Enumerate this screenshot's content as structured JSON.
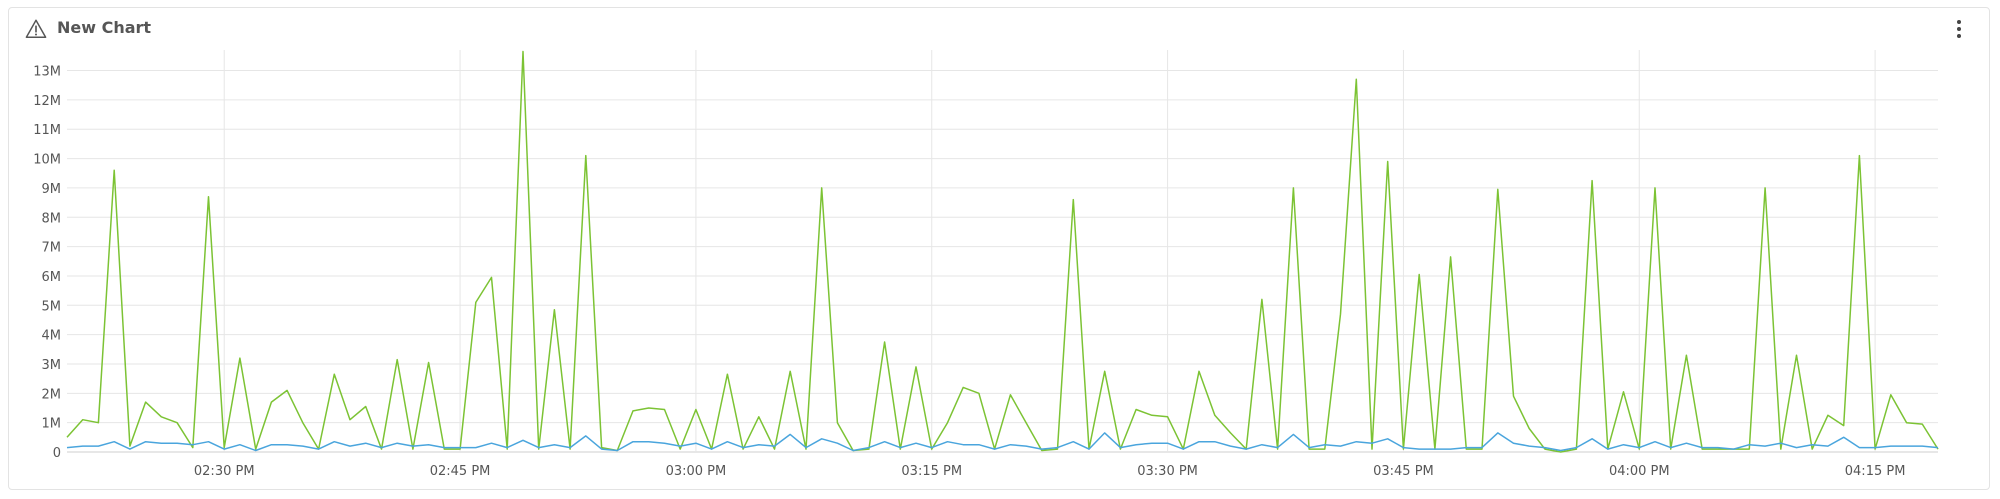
{
  "header": {
    "title": "New Chart",
    "icon": "warning-icon",
    "menu_icon": "kebab-menu-icon"
  },
  "colors": {
    "series_green": "#7cc334",
    "series_blue": "#4aa5dd",
    "grid": "#e6e6e6",
    "axis_text": "#565656"
  },
  "chart_data": {
    "type": "line",
    "title": "New Chart",
    "xlabel": "",
    "ylabel": "",
    "x_start": "02:20 PM",
    "x_interval_minutes": 1,
    "x_ticks": [
      "02:30 PM",
      "02:45 PM",
      "03:00 PM",
      "03:15 PM",
      "03:30 PM",
      "03:45 PM",
      "04:00 PM",
      "04:15 PM"
    ],
    "y_ticks": [
      "0",
      "1M",
      "2M",
      "3M",
      "4M",
      "5M",
      "6M",
      "7M",
      "8M",
      "9M",
      "10M",
      "11M",
      "12M",
      "13M"
    ],
    "ylim": [
      0,
      13700000
    ],
    "grid": true,
    "legend": "none",
    "series": [
      {
        "color": "#7cc334",
        "values": [
          500000,
          1100000,
          1000000,
          9600000,
          200000,
          1700000,
          1200000,
          1000000,
          150000,
          8700000,
          150000,
          3200000,
          100000,
          1700000,
          2100000,
          1000000,
          100000,
          2650000,
          1100000,
          1550000,
          100000,
          3150000,
          100000,
          3050000,
          100000,
          100000,
          5100000,
          5950000,
          100000,
          13650000,
          100000,
          4850000,
          100000,
          10100000,
          150000,
          50000,
          1400000,
          1500000,
          1450000,
          100000,
          1450000,
          100000,
          2650000,
          100000,
          1200000,
          100000,
          2750000,
          100000,
          9000000,
          1000000,
          50000,
          100000,
          3750000,
          100000,
          2900000,
          100000,
          1000000,
          2200000,
          2000000,
          100000,
          1950000,
          1000000,
          50000,
          100000,
          8600000,
          100000,
          2750000,
          100000,
          1450000,
          1250000,
          1200000,
          100000,
          2750000,
          1250000,
          650000,
          100000,
          5200000,
          100000,
          9000000,
          100000,
          100000,
          4700000,
          12700000,
          100000,
          9900000,
          100000,
          6050000,
          100000,
          6650000,
          100000,
          100000,
          8950000,
          1900000,
          800000,
          100000,
          0,
          100000,
          9250000,
          100000,
          2050000,
          100000,
          9000000,
          100000,
          3300000,
          100000,
          100000,
          100000,
          100000,
          9000000,
          100000,
          3300000,
          100000,
          1250000,
          900000,
          10100000,
          100000,
          1950000,
          1000000,
          950000,
          100000
        ]
      },
      {
        "color": "#4aa5dd",
        "values": [
          150000,
          200000,
          200000,
          350000,
          100000,
          350000,
          300000,
          300000,
          250000,
          350000,
          100000,
          250000,
          50000,
          250000,
          250000,
          200000,
          100000,
          350000,
          200000,
          300000,
          150000,
          300000,
          200000,
          250000,
          150000,
          150000,
          150000,
          300000,
          150000,
          400000,
          150000,
          250000,
          150000,
          550000,
          100000,
          50000,
          350000,
          350000,
          300000,
          200000,
          300000,
          100000,
          350000,
          150000,
          250000,
          200000,
          600000,
          150000,
          450000,
          300000,
          50000,
          150000,
          350000,
          150000,
          300000,
          150000,
          350000,
          250000,
          250000,
          100000,
          250000,
          200000,
          100000,
          150000,
          350000,
          100000,
          650000,
          150000,
          250000,
          300000,
          300000,
          100000,
          350000,
          350000,
          200000,
          100000,
          250000,
          150000,
          600000,
          150000,
          250000,
          200000,
          350000,
          300000,
          450000,
          150000,
          100000,
          100000,
          100000,
          150000,
          150000,
          650000,
          300000,
          200000,
          150000,
          50000,
          150000,
          450000,
          100000,
          250000,
          150000,
          350000,
          150000,
          300000,
          150000,
          150000,
          100000,
          250000,
          200000,
          300000,
          150000,
          250000,
          200000,
          500000,
          150000,
          150000,
          200000,
          200000,
          200000,
          150000
        ]
      }
    ]
  }
}
